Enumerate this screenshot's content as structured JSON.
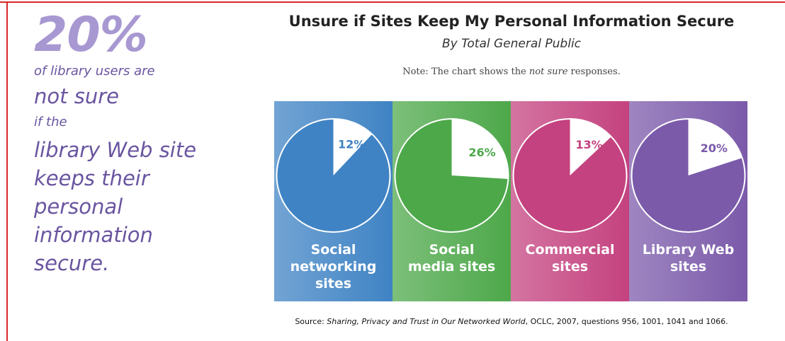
{
  "callout": {
    "stat": "20%",
    "lines": [
      "of library users are",
      "not sure",
      "if the",
      "library Web site",
      "keeps their",
      "personal",
      "information",
      "secure."
    ]
  },
  "chart_data": {
    "type": "pie",
    "title": "Unsure if Sites Keep My Personal Information Secure",
    "subtitle": "By Total General Public",
    "note": [
      "Note: The chart shows the ",
      "not sure",
      " responses."
    ],
    "categories": [
      "Social networking sites",
      "Social media sites",
      "Commercial sites",
      "Library Web sites"
    ],
    "values": [
      12,
      26,
      13,
      20
    ],
    "value_labels": [
      "12%",
      "26%",
      "13%",
      "20%"
    ],
    "colors": [
      "#3f83c4",
      "#4da84a",
      "#c4427f",
      "#7b5aaa"
    ],
    "source": [
      "Source: ",
      "Sharing, Privacy and Trust in Our Networked World",
      ", OCLC, 2007, questions 956, 1001, 1041 and 1066."
    ]
  }
}
